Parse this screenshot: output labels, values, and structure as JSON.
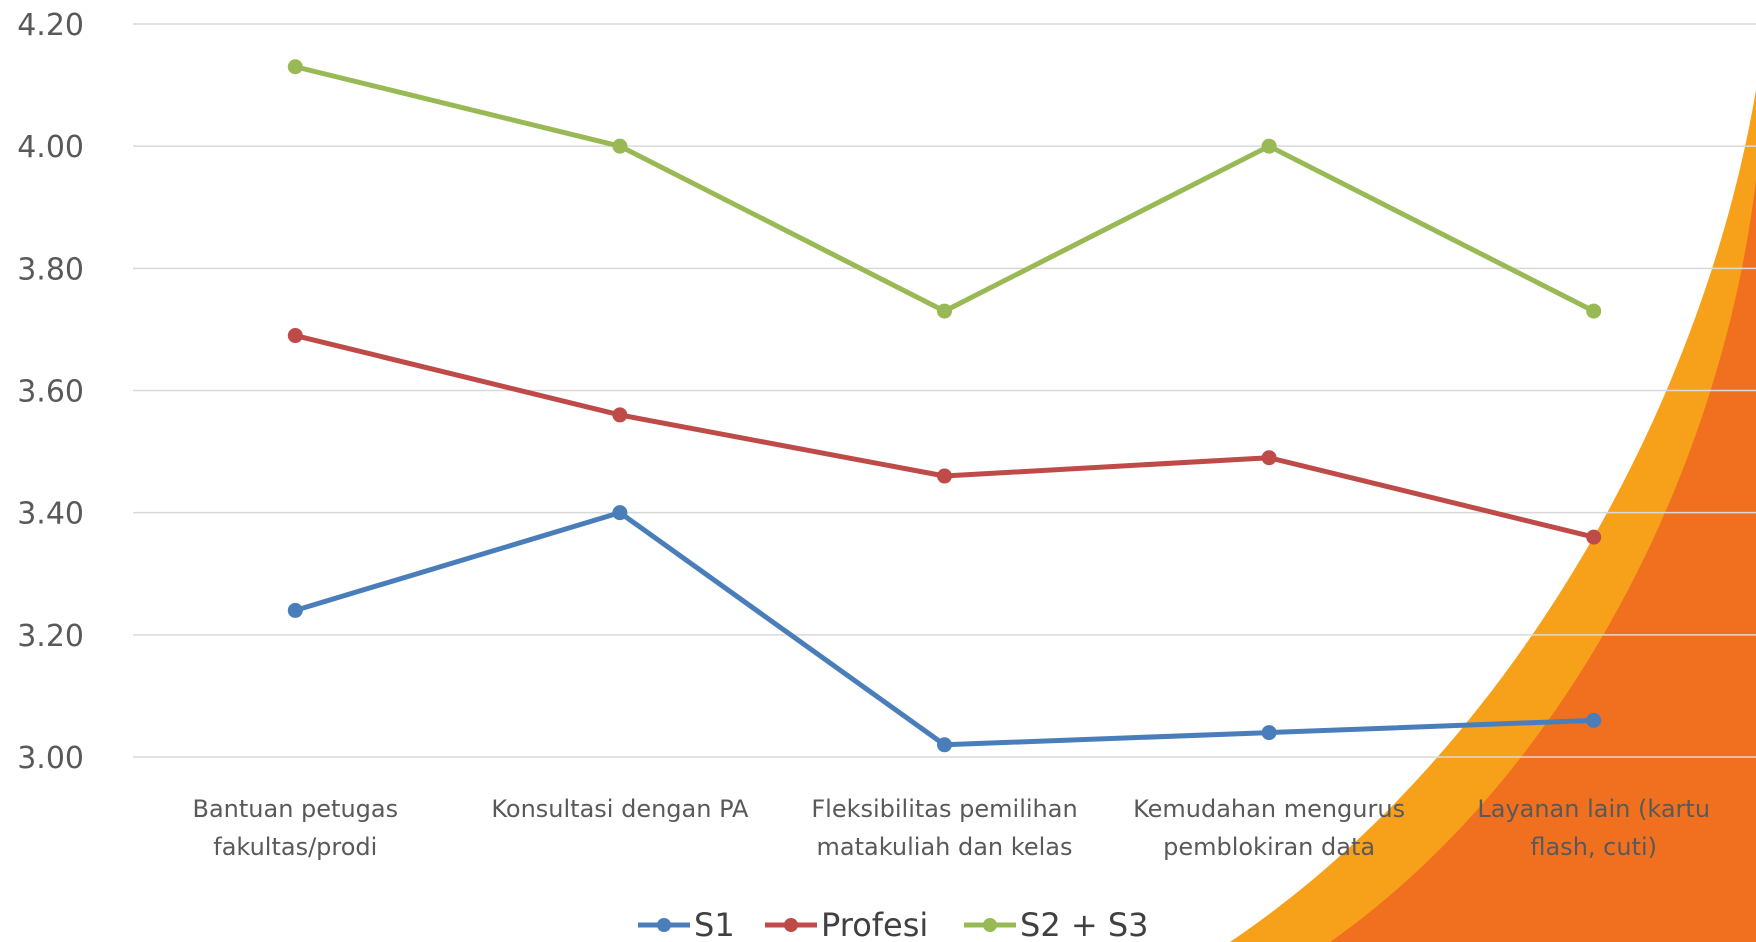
{
  "chart_data": {
    "type": "line",
    "categories": [
      [
        "Bantuan petugas",
        "fakultas/prodi"
      ],
      [
        "Konsultasi dengan PA"
      ],
      [
        "Fleksibilitas pemilihan",
        "matakuliah dan kelas"
      ],
      [
        "Kemudahan mengurus",
        "pemblokiran data"
      ],
      [
        "Layanan lain (kartu",
        "flash, cuti)"
      ]
    ],
    "series": [
      {
        "name": "S1",
        "color": "#4a7ebb",
        "values": [
          3.24,
          3.4,
          3.02,
          3.04,
          3.06
        ]
      },
      {
        "name": "Profesi",
        "color": "#be4b48",
        "values": [
          3.69,
          3.56,
          3.46,
          3.49,
          3.36
        ]
      },
      {
        "name": "S2 + S3",
        "color": "#98b954",
        "values": [
          4.13,
          4.0,
          3.73,
          4.0,
          3.73
        ]
      }
    ],
    "ylim": [
      3.0,
      4.2
    ],
    "yticks": [
      "3.00",
      "3.20",
      "3.40",
      "3.60",
      "3.80",
      "4.00",
      "4.20"
    ],
    "grid": true,
    "legend": "bottom",
    "title": "",
    "xlabel": "",
    "ylabel": ""
  },
  "decoration": {
    "swoosh_colors": [
      "#f7a11a",
      "#f07020"
    ]
  }
}
